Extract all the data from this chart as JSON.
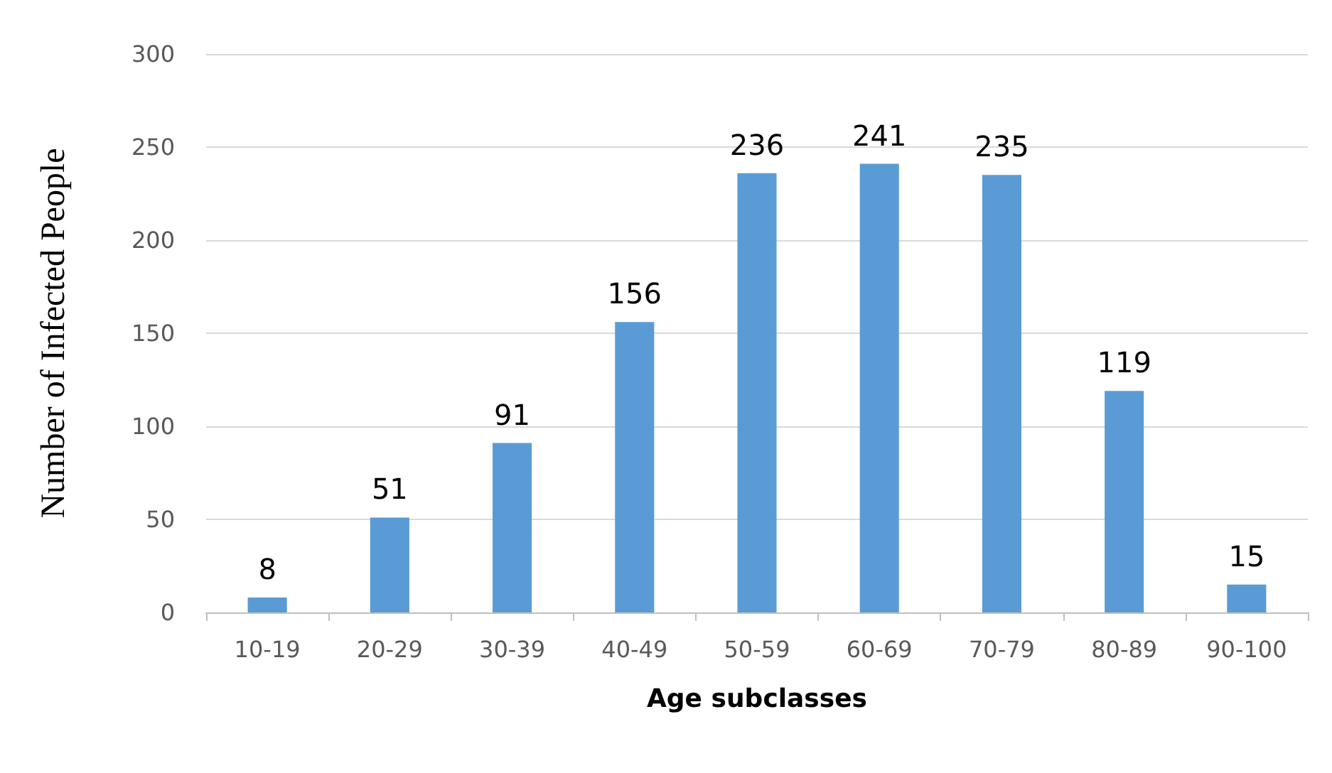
{
  "chart_data": {
    "type": "bar",
    "xlabel": "Age subclasses",
    "ylabel": "Number of Infected People",
    "categories": [
      "10-19",
      "20-29",
      "30-39",
      "40-49",
      "50-59",
      "60-69",
      "70-79",
      "80-89",
      "90-100"
    ],
    "values": [
      8,
      51,
      91,
      156,
      236,
      241,
      235,
      119,
      15
    ],
    "color": "#5b9bd5",
    "ylim": [
      0,
      300
    ],
    "yticks": [
      0,
      50,
      100,
      150,
      200,
      250,
      300
    ],
    "grid": "y",
    "data_labels": true
  }
}
